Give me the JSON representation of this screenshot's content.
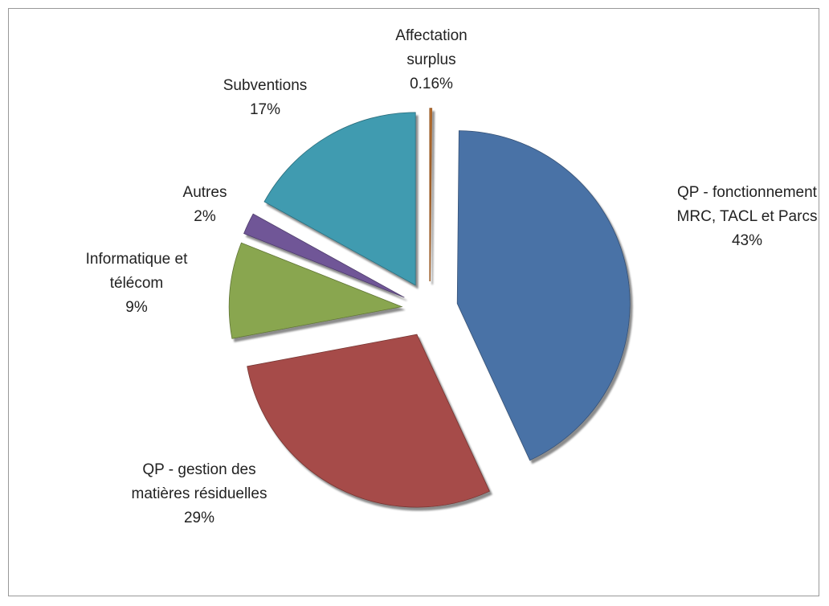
{
  "chart_data": {
    "type": "pie",
    "categories": [
      "Affectation surplus",
      "QP - fonctionnement MRC, TACL et Parcs",
      "QP - gestion des matières résiduelles",
      "Informatique et télécom",
      "Autres",
      "Subventions"
    ],
    "values": [
      0.16,
      43,
      29,
      9,
      2,
      17
    ],
    "value_labels": [
      "0.16%",
      "43%",
      "29%",
      "9%",
      "2%",
      "17%"
    ],
    "colors": [
      "#e0883a",
      "#4a72a6",
      "#a64b48",
      "#89a64f",
      "#6f5697",
      "#3f9bb0"
    ],
    "exploded": true
  }
}
